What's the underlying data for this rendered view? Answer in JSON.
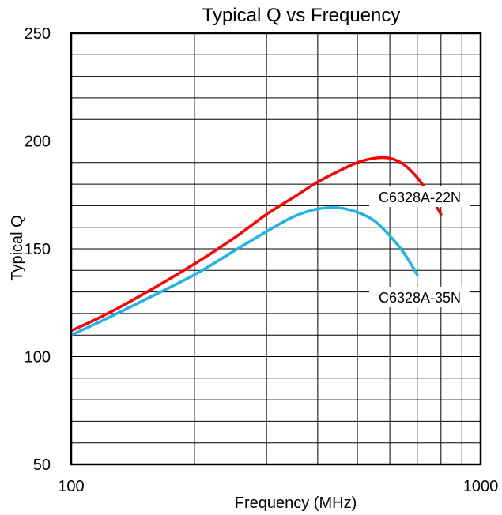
{
  "chart_data": {
    "type": "line",
    "title": "Typical Q vs Frequency",
    "xlabel": "Frequency (MHz)",
    "ylabel": "Typical Q",
    "x_scale": "log",
    "xlim": [
      100,
      1000
    ],
    "ylim": [
      50,
      250
    ],
    "x_ticks": [
      100,
      1000
    ],
    "x_tick_labels": [
      "100",
      "1000"
    ],
    "y_ticks": [
      50,
      100,
      150,
      200,
      250
    ],
    "y_tick_labels": [
      "50",
      "100",
      "150",
      "200",
      "250"
    ],
    "y_minor_step": 10,
    "grid": true,
    "series": [
      {
        "name": "C6328A-22N",
        "color": "#ff0000",
        "x": [
          100,
          120,
          150,
          200,
          250,
          300,
          350,
          400,
          450,
          500,
          550,
          600,
          650,
          700,
          750,
          800
        ],
        "y": [
          112,
          119,
          129,
          143,
          155,
          166,
          174,
          181,
          186,
          190,
          192,
          192,
          189,
          183,
          175,
          166
        ]
      },
      {
        "name": "C6328A-35N",
        "color": "#1eb4e8",
        "x": [
          100,
          120,
          150,
          200,
          250,
          300,
          350,
          400,
          450,
          500,
          550,
          600,
          650,
          700
        ],
        "y": [
          110,
          117,
          126,
          138,
          149,
          158,
          165,
          168.5,
          169,
          167,
          163,
          156,
          148,
          138
        ]
      }
    ],
    "annotations": [
      {
        "text": "C6328A-22N",
        "series": "C6328A-22N"
      },
      {
        "text": "C6328A-35N",
        "series": "C6328A-35N"
      }
    ]
  }
}
